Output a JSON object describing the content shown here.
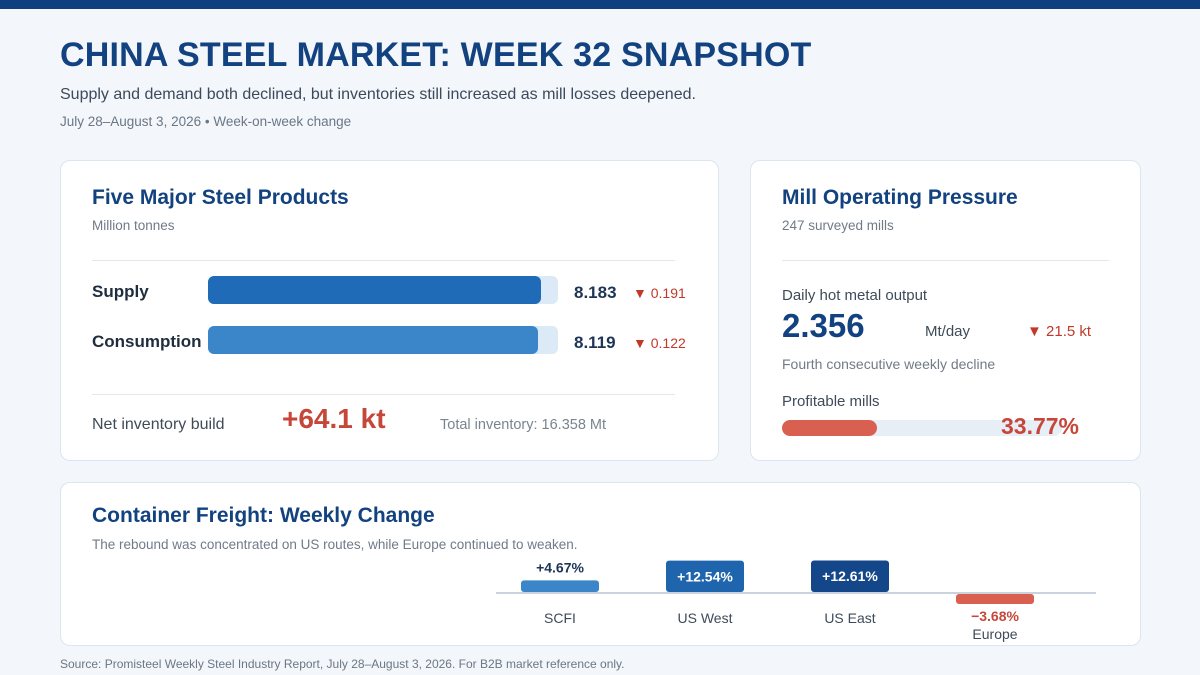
{
  "header": {
    "title": "CHINA STEEL MARKET: WEEK 32 SNAPSHOT",
    "subtitle": "Supply and demand both declined, but inventories still increased as mill losses deepened.",
    "dateline": "July 28–August 3, 2026 • Week-on-week change"
  },
  "products": {
    "title": "Five Major Steel Products",
    "unit": "Million tonnes",
    "rows": [
      {
        "label": "Supply",
        "value": "8.183",
        "delta": "▼ 0.191",
        "num": 8.183,
        "color": "#1f6bb8"
      },
      {
        "label": "Consumption",
        "value": "8.119",
        "delta": "▼ 0.122",
        "num": 8.119,
        "color": "#3a86c8"
      }
    ],
    "scale_max": 8.6,
    "net_label": "Net inventory build",
    "net_value": "+64.1 kt",
    "total_inventory": "Total inventory: 16.358 Mt"
  },
  "mill": {
    "title": "Mill Operating Pressure",
    "sub": "247 surveyed mills",
    "hot_metal_label": "Daily hot metal output",
    "hot_metal_value": "2.356",
    "hot_metal_unit": "Mt/day",
    "hot_metal_delta": "▼ 21.5 kt",
    "hot_metal_note": "Fourth consecutive weekly decline",
    "profitable_label": "Profitable mills",
    "profitable_value": "33.77%",
    "profitable_fraction": 0.3377,
    "bar_color": "#d95f51"
  },
  "freight": {
    "title": "Container Freight: Weekly Change",
    "sub": "The rebound was concentrated on US routes, while Europe continued to weaken."
  },
  "chart_data": {
    "type": "bar",
    "title": "Container Freight: Weekly Change",
    "categories": [
      "SCFI",
      "US West",
      "US East",
      "Europe"
    ],
    "values": [
      4.67,
      12.54,
      12.61,
      -3.68
    ],
    "labels": [
      "+4.67%",
      "+12.54%",
      "+12.61%",
      "−3.68%"
    ],
    "colors": [
      "#3a86c8",
      "#1f65ad",
      "#14478a",
      "#d95f51"
    ],
    "ylabel": "",
    "xlabel": "",
    "grid": false
  },
  "footer": {
    "source": "Source: Promisteel Weekly Steel Industry Report, July 28–August 3, 2026. For B2B market reference only."
  },
  "colors": {
    "brand": "#12427f",
    "negative": "#c6473a",
    "background": "#f3f6fa"
  }
}
